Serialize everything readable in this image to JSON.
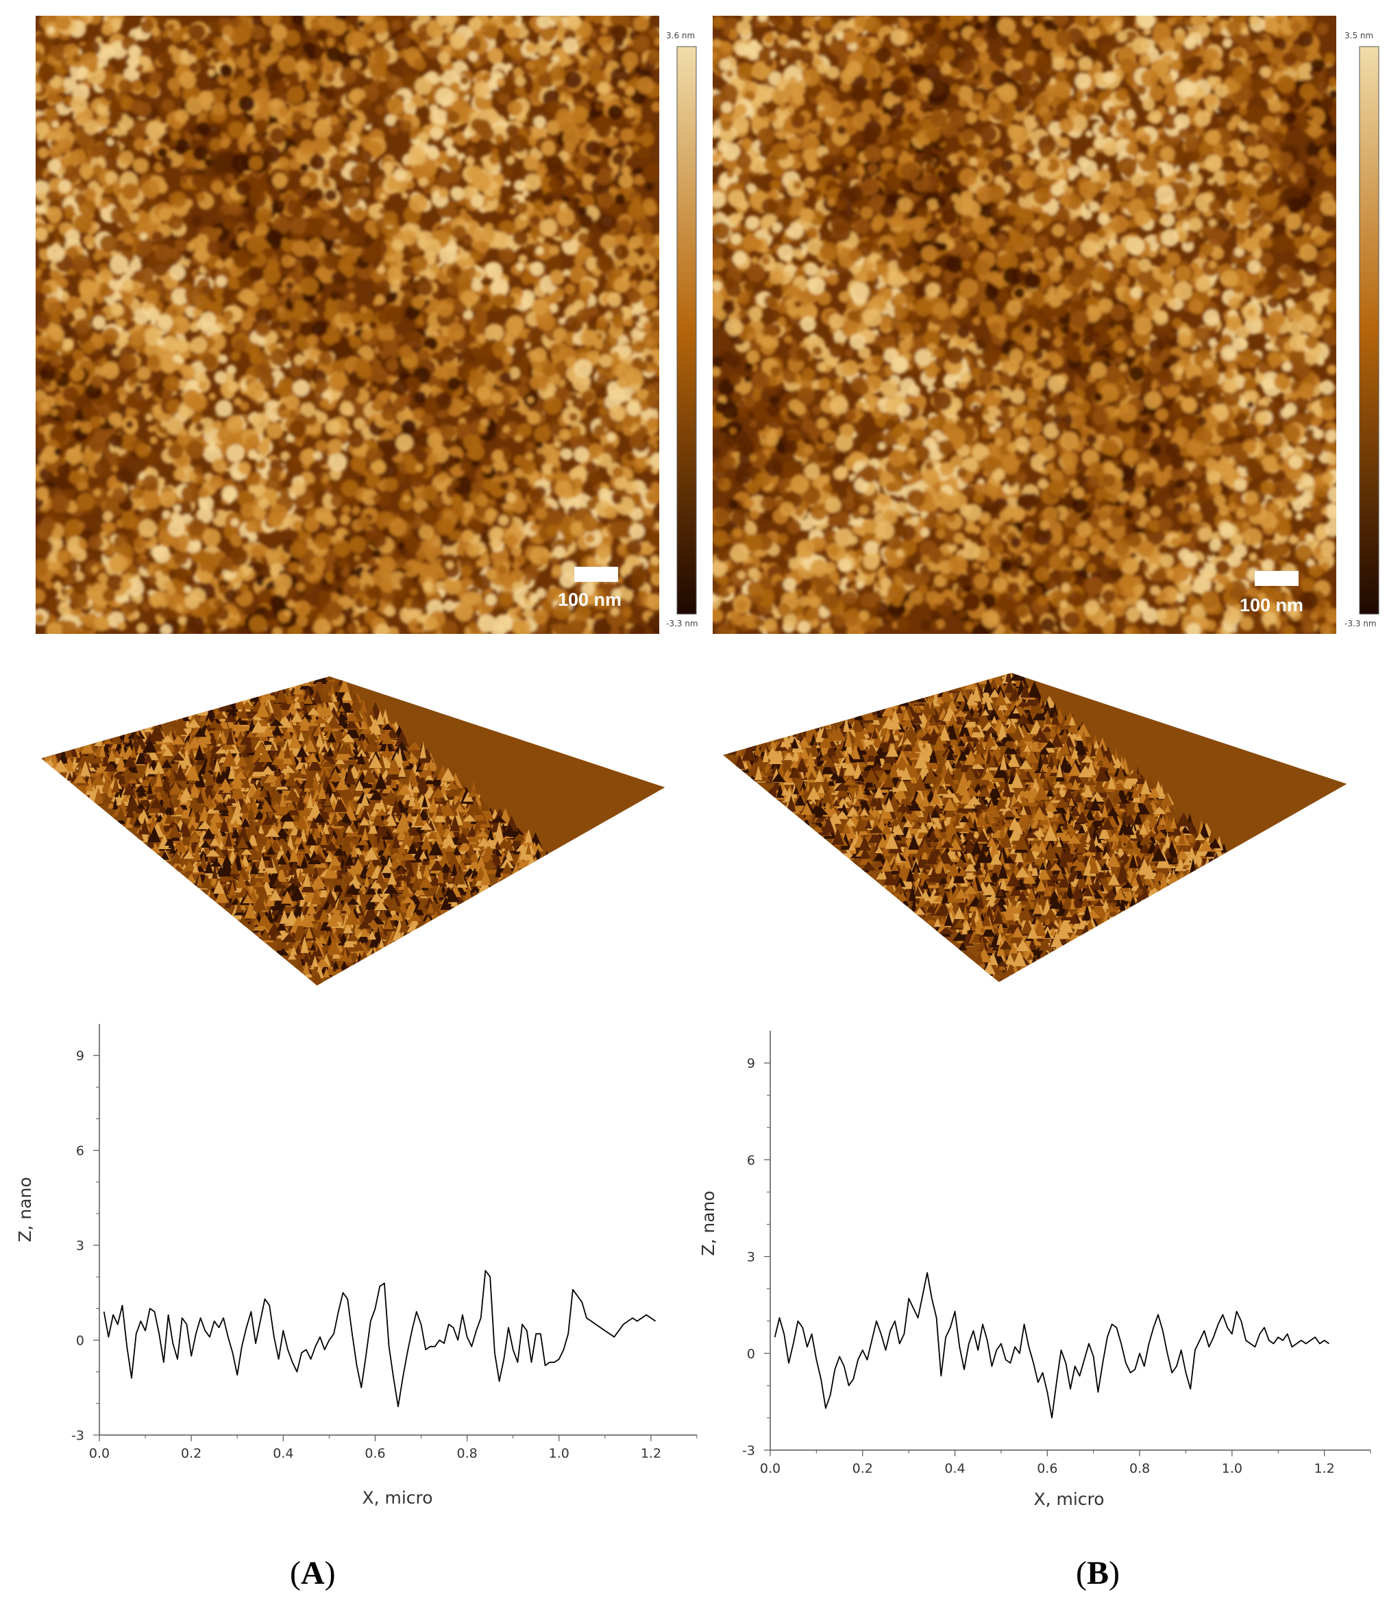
{
  "panels": [
    {
      "id": "A",
      "label_open": "(",
      "label_letter": "A",
      "label_close": ")",
      "scale_bar": "100 nm",
      "colorbar": {
        "max": "3.6 nm",
        "min": "-3.3 nm"
      },
      "seed": 11
    },
    {
      "id": "B",
      "label_open": "(",
      "label_letter": "B",
      "label_close": ")",
      "scale_bar": "100 nm",
      "colorbar": {
        "max": "3.5 nm",
        "min": "-3.3 nm"
      },
      "seed": 29
    }
  ],
  "colors": {
    "afm_dark": "#2a0d00",
    "afm_mid": "#a55a08",
    "afm_light": "#f3d9a0",
    "line": "#000000",
    "axis": "#555555"
  },
  "chart_data": [
    {
      "type": "line",
      "title": "",
      "xlabel": "X, micro",
      "ylabel": "Z, nano",
      "xlim": [
        0.0,
        1.3
      ],
      "ylim": [
        -3,
        10
      ],
      "xticks": [
        "0.0",
        "0.2",
        "0.4",
        "0.6",
        "0.8",
        "1.0",
        "1.2"
      ],
      "yticks": [
        "-3",
        "0",
        "3",
        "6",
        "9"
      ],
      "series": [
        {
          "x": [
            0.01,
            0.02,
            0.03,
            0.04,
            0.05,
            0.06,
            0.07,
            0.08,
            0.09,
            0.1,
            0.11,
            0.12,
            0.13,
            0.14,
            0.15,
            0.16,
            0.17,
            0.18,
            0.19,
            0.2,
            0.21,
            0.22,
            0.23,
            0.24,
            0.25,
            0.26,
            0.27,
            0.28,
            0.29,
            0.3,
            0.31,
            0.32,
            0.33,
            0.34,
            0.35,
            0.36,
            0.37,
            0.38,
            0.39,
            0.4,
            0.41,
            0.42,
            0.43,
            0.44,
            0.45,
            0.46,
            0.47,
            0.48,
            0.49,
            0.5,
            0.51,
            0.52,
            0.53,
            0.54,
            0.55,
            0.56,
            0.57,
            0.58,
            0.59,
            0.6,
            0.61,
            0.62,
            0.63,
            0.64,
            0.65,
            0.66,
            0.67,
            0.68,
            0.69,
            0.7,
            0.71,
            0.72,
            0.73,
            0.74,
            0.75,
            0.76,
            0.77,
            0.78,
            0.79,
            0.8,
            0.81,
            0.82,
            0.83,
            0.84,
            0.85,
            0.86,
            0.87,
            0.88,
            0.89,
            0.9,
            0.91,
            0.92,
            0.93,
            0.94,
            0.95,
            0.96,
            0.97,
            0.98,
            0.99,
            1.0,
            1.01,
            1.02,
            1.03,
            1.04,
            1.05,
            1.06,
            1.07,
            1.08,
            1.09,
            1.1,
            1.11,
            1.12,
            1.13,
            1.14,
            1.15,
            1.16,
            1.17,
            1.18,
            1.19,
            1.2,
            1.21
          ],
          "y": [
            0.9,
            0.1,
            0.8,
            0.5,
            1.1,
            -0.2,
            -1.2,
            0.2,
            0.6,
            0.3,
            1.0,
            0.9,
            0.2,
            -0.7,
            0.8,
            -0.1,
            -0.6,
            0.7,
            0.5,
            -0.5,
            0.2,
            0.7,
            0.3,
            0.1,
            0.6,
            0.4,
            0.7,
            0.1,
            -0.4,
            -1.1,
            -0.2,
            0.4,
            0.9,
            -0.1,
            0.6,
            1.3,
            1.1,
            0.1,
            -0.6,
            0.3,
            -0.3,
            -0.7,
            -1.0,
            -0.4,
            -0.3,
            -0.6,
            -0.2,
            0.1,
            -0.3,
            0.0,
            0.2,
            0.9,
            1.5,
            1.3,
            0.2,
            -0.8,
            -1.5,
            -0.5,
            0.6,
            1.0,
            1.7,
            1.8,
            -0.2,
            -1.2,
            -2.1,
            -1.2,
            -0.4,
            0.3,
            0.9,
            0.5,
            -0.3,
            -0.2,
            -0.2,
            0.0,
            -0.1,
            0.5,
            0.4,
            0.0,
            0.8,
            0.1,
            -0.2,
            0.3,
            0.7,
            2.2,
            2.0,
            -0.4,
            -1.3,
            -0.6,
            0.4,
            -0.3,
            -0.7,
            0.5,
            0.3,
            -0.7,
            0.2,
            0.2,
            -0.8,
            -0.7,
            -0.7,
            -0.6,
            -0.3,
            0.2,
            1.6,
            1.4,
            1.2,
            0.7,
            0.6,
            0.5,
            0.4,
            0.3,
            0.2,
            0.1,
            0.3,
            0.5,
            0.6,
            0.7,
            0.6,
            0.7,
            0.8,
            0.7,
            0.6
          ],
          "color": "#000000"
        }
      ]
    },
    {
      "type": "line",
      "title": "",
      "xlabel": "X, micro",
      "ylabel": "Z, nano",
      "xlim": [
        0.0,
        1.3
      ],
      "ylim": [
        -3,
        10
      ],
      "xticks": [
        "0.0",
        "0.2",
        "0.4",
        "0.6",
        "0.8",
        "1.0",
        "1.2"
      ],
      "yticks": [
        "-3",
        "0",
        "3",
        "6",
        "9"
      ],
      "series": [
        {
          "x": [
            0.01,
            0.02,
            0.03,
            0.04,
            0.05,
            0.06,
            0.07,
            0.08,
            0.09,
            0.1,
            0.11,
            0.12,
            0.13,
            0.14,
            0.15,
            0.16,
            0.17,
            0.18,
            0.19,
            0.2,
            0.21,
            0.22,
            0.23,
            0.24,
            0.25,
            0.26,
            0.27,
            0.28,
            0.29,
            0.3,
            0.31,
            0.32,
            0.33,
            0.34,
            0.35,
            0.36,
            0.37,
            0.38,
            0.39,
            0.4,
            0.41,
            0.42,
            0.43,
            0.44,
            0.45,
            0.46,
            0.47,
            0.48,
            0.49,
            0.5,
            0.51,
            0.52,
            0.53,
            0.54,
            0.55,
            0.56,
            0.57,
            0.58,
            0.59,
            0.6,
            0.61,
            0.62,
            0.63,
            0.64,
            0.65,
            0.66,
            0.67,
            0.68,
            0.69,
            0.7,
            0.71,
            0.72,
            0.73,
            0.74,
            0.75,
            0.76,
            0.77,
            0.78,
            0.79,
            0.8,
            0.81,
            0.82,
            0.83,
            0.84,
            0.85,
            0.86,
            0.87,
            0.88,
            0.89,
            0.9,
            0.91,
            0.92,
            0.93,
            0.94,
            0.95,
            0.96,
            0.97,
            0.98,
            0.99,
            1.0,
            1.01,
            1.02,
            1.03,
            1.04,
            1.05,
            1.06,
            1.07,
            1.08,
            1.09,
            1.1,
            1.11,
            1.12,
            1.13,
            1.14,
            1.15,
            1.16,
            1.17,
            1.18,
            1.19,
            1.2,
            1.21
          ],
          "y": [
            0.5,
            1.1,
            0.6,
            -0.3,
            0.3,
            1.0,
            0.8,
            0.2,
            0.6,
            -0.2,
            -0.8,
            -1.7,
            -1.3,
            -0.5,
            -0.1,
            -0.4,
            -1.0,
            -0.8,
            -0.2,
            0.1,
            -0.2,
            0.4,
            1.0,
            0.6,
            0.1,
            0.7,
            1.0,
            0.3,
            0.6,
            1.7,
            1.4,
            1.1,
            1.8,
            2.5,
            1.7,
            1.1,
            -0.7,
            0.5,
            0.8,
            1.3,
            0.2,
            -0.5,
            0.3,
            0.7,
            0.1,
            0.9,
            0.4,
            -0.4,
            0.1,
            0.3,
            -0.2,
            -0.3,
            0.2,
            0.0,
            0.9,
            0.2,
            -0.3,
            -0.9,
            -0.6,
            -1.2,
            -2.0,
            -0.9,
            0.1,
            -0.3,
            -1.1,
            -0.4,
            -0.7,
            -0.2,
            0.3,
            -0.1,
            -1.2,
            -0.3,
            0.5,
            0.9,
            0.8,
            0.3,
            -0.3,
            -0.6,
            -0.5,
            0.0,
            -0.4,
            0.3,
            0.8,
            1.2,
            0.7,
            0.0,
            -0.6,
            -0.4,
            0.1,
            -0.6,
            -1.1,
            0.1,
            0.4,
            0.7,
            0.2,
            0.5,
            0.9,
            1.2,
            0.8,
            0.6,
            1.3,
            1.0,
            0.4,
            0.3,
            0.2,
            0.6,
            0.8,
            0.4,
            0.3,
            0.5,
            0.4,
            0.6,
            0.2,
            0.3,
            0.4,
            0.3,
            0.4,
            0.5,
            0.3,
            0.4,
            0.3
          ],
          "color": "#000000"
        }
      ]
    }
  ]
}
